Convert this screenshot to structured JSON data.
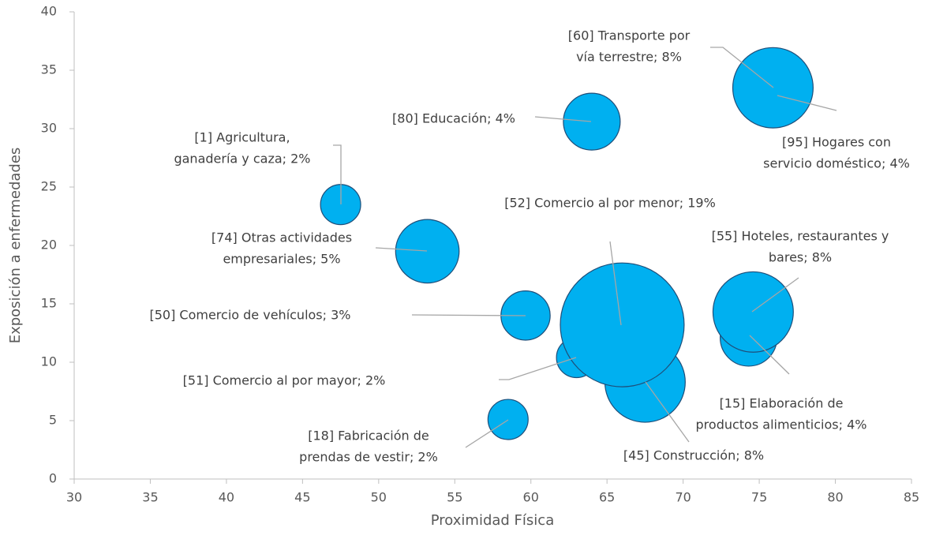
{
  "chart_data": {
    "type": "bubble",
    "x_label": "Proximidad Física",
    "y_label": "Exposición a enfermedades",
    "xlim": [
      30,
      85
    ],
    "xticks": [
      30,
      35,
      40,
      45,
      50,
      55,
      60,
      65,
      70,
      75,
      80,
      85
    ],
    "ylim": [
      0,
      40
    ],
    "yticks": [
      0,
      5,
      10,
      15,
      20,
      25,
      30,
      35,
      40
    ],
    "color": "#00b0f0",
    "edge_color": "#1f4e79",
    "x": [
      47.5,
      53.2,
      59.65,
      63.0,
      67.5,
      66.0,
      58.5,
      64.0,
      76.2,
      75.9,
      74.3,
      74.6
    ],
    "values": [
      23.5,
      19.5,
      14.0,
      10.4,
      8.3,
      13.2,
      5.1,
      30.6,
      32.8,
      33.5,
      12.1,
      14.3
    ],
    "sizes": [
      2,
      5,
      3,
      2,
      8,
      19,
      2,
      4,
      4,
      8,
      4,
      8
    ],
    "labels": [
      [
        "[1] Agricultura,",
        "ganadería y caza; 2%"
      ],
      [
        "[74] Otras actividades",
        "empresariales; 5%"
      ],
      [
        "[50] Comercio de vehículos; 3%"
      ],
      [
        "[51] Comercio al por mayor; 2%"
      ],
      [
        "[45] Construcción; 8%"
      ],
      [
        "[52] Comercio al por menor; 19%"
      ],
      [
        "[18] Fabricación de",
        "prendas de vestir; 2%"
      ],
      [
        "[80] Educación; 4%"
      ],
      [
        "[95] Hogares con",
        "servicio  doméstico; 4%"
      ],
      [
        "[60] Transporte por",
        "vía terrestre; 8%"
      ],
      [
        "[15] Elaboración de",
        "productos alimenticios; 4%"
      ],
      [
        "[55] Hoteles, restaurantes y",
        "bares; 8%"
      ]
    ]
  }
}
